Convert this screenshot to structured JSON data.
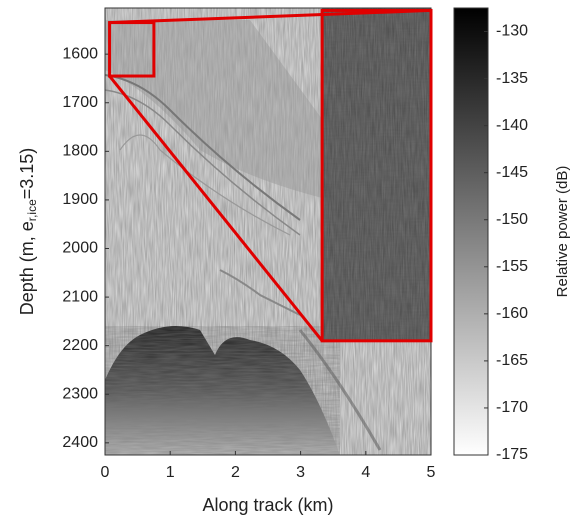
{
  "chart_data": {
    "type": "radargram",
    "xlabel": "Along track (km)",
    "ylabel": {
      "text": "Depth (m, e",
      "sub": "r,ice",
      "rest": "=3.15)"
    },
    "xlim": [
      0,
      5
    ],
    "xticks": [
      0,
      1,
      2,
      3,
      4,
      5
    ],
    "ylim": [
      1505,
      2425
    ],
    "yticks": [
      1600,
      1700,
      1800,
      1900,
      2000,
      2100,
      2200,
      2300,
      2400
    ],
    "colorbar": {
      "label": "Relative power (dB)",
      "colormap": "gray",
      "clim": [
        -175,
        -127.5
      ],
      "ticks": [
        -130,
        -135,
        -140,
        -145,
        -150,
        -155,
        -160,
        -165,
        -170,
        -175
      ]
    },
    "zoom_box": {
      "xlim": [
        0.07,
        0.75
      ],
      "ylim": [
        1535,
        1645
      ]
    },
    "inset": {
      "xlim": [
        3.33,
        5
      ],
      "ylim": [
        1510,
        2190
      ]
    },
    "highlight_color": "#e00000"
  }
}
